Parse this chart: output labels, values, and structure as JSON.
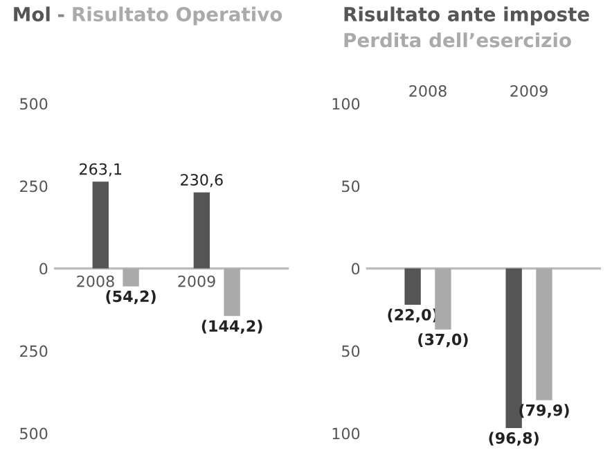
{
  "chart_data": [
    {
      "type": "bar",
      "categories": [
        "2008",
        "2009"
      ],
      "ylim": [
        -500,
        500
      ],
      "yticks": [
        {
          "value": 500,
          "label": "500"
        },
        {
          "value": 250,
          "label": "250"
        },
        {
          "value": 0,
          "label": "0"
        },
        {
          "value": -250,
          "label": "250"
        },
        {
          "value": -500,
          "label": "500"
        }
      ],
      "annotations": [
        "-"
      ],
      "series": [
        {
          "name": "Mol",
          "color": "#555555",
          "values": [
            263.1,
            230.6
          ],
          "value_labels": [
            "263,1",
            "230,6"
          ]
        },
        {
          "name": "Risultato Operativo",
          "color": "#aaaaaa",
          "values": [
            -54.2,
            -144.2
          ],
          "value_labels": [
            "(54,2)",
            "(144,2)"
          ]
        }
      ]
    },
    {
      "type": "bar",
      "categories": [
        "2008",
        "2009"
      ],
      "ylim": [
        -100,
        100
      ],
      "yticks": [
        {
          "value": 100,
          "label": "100"
        },
        {
          "value": 50,
          "label": "50"
        },
        {
          "value": 0,
          "label": "0"
        },
        {
          "value": -50,
          "label": "50"
        },
        {
          "value": -100,
          "label": "100"
        }
      ],
      "series": [
        {
          "name": "Risultato ante imposte",
          "color": "#555555",
          "values": [
            -22.0,
            -96.8
          ],
          "value_labels": [
            "(22,0)",
            "(96,8)"
          ]
        },
        {
          "name": "Perdita dell’esercizio",
          "color": "#aaaaaa",
          "values": [
            -37.0,
            -79.9
          ],
          "value_labels": [
            "(37,0)",
            "(79,9)"
          ]
        }
      ]
    }
  ]
}
